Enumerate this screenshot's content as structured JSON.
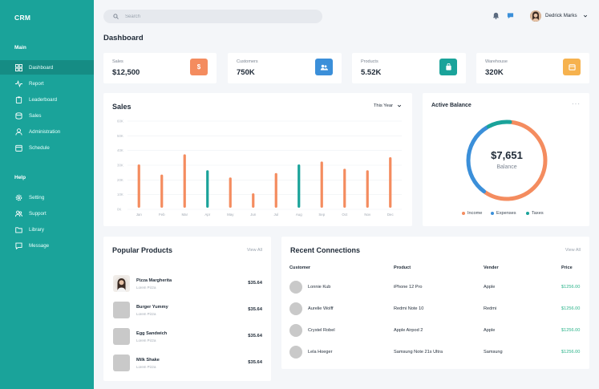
{
  "app": {
    "logo": "CRM"
  },
  "sidebar": {
    "main_title": "Main",
    "main_items": [
      {
        "label": "Dashboard",
        "icon": "dashboard-icon"
      },
      {
        "label": "Report",
        "icon": "pulse-icon"
      },
      {
        "label": "Leaderboard",
        "icon": "clipboard-icon"
      },
      {
        "label": "Sales",
        "icon": "stack-icon"
      },
      {
        "label": "Administration",
        "icon": "user-icon"
      },
      {
        "label": "Schedule",
        "icon": "calendar-icon"
      }
    ],
    "help_title": "Help",
    "help_items": [
      {
        "label": "Setting",
        "icon": "gear-icon"
      },
      {
        "label": "Support",
        "icon": "users-icon"
      },
      {
        "label": "Library",
        "icon": "folder-icon"
      },
      {
        "label": "Message",
        "icon": "chat-icon"
      }
    ]
  },
  "topbar": {
    "search_placeholder": "Search",
    "user_name": "Dedrick Marks"
  },
  "page": {
    "title": "Dashboard"
  },
  "stats": [
    {
      "label": "Sales",
      "value": "$12,500",
      "icon_text": "$",
      "color": "#f48c5f"
    },
    {
      "label": "Customers",
      "value": "750K",
      "icon_text": "",
      "color": "#3b8fd9"
    },
    {
      "label": "Products",
      "value": "5.52K",
      "icon_text": "",
      "color": "#1aa39a"
    },
    {
      "label": "Warehouse",
      "value": "320K",
      "icon_text": "",
      "color": "#f6b24e"
    }
  ],
  "sales": {
    "title": "Sales",
    "period": "This Year",
    "y_ticks": [
      "60K",
      "50K",
      "40K",
      "30K",
      "20K",
      "10K",
      "0K"
    ]
  },
  "chart_data": {
    "type": "bar",
    "title": "Sales",
    "categories": [
      "Jan",
      "Feb",
      "Mar",
      "Apr",
      "May",
      "Jun",
      "Jul",
      "Aug",
      "Sep",
      "Oct",
      "Nov",
      "Dec"
    ],
    "values": [
      30,
      23,
      37,
      26,
      21,
      10,
      24,
      30,
      32,
      27,
      26,
      35
    ],
    "colors": [
      "#f48c5f",
      "#f48c5f",
      "#f48c5f",
      "#1aa39a",
      "#f48c5f",
      "#f48c5f",
      "#f48c5f",
      "#1aa39a",
      "#f48c5f",
      "#f48c5f",
      "#f48c5f",
      "#f48c5f"
    ],
    "ylim": [
      0,
      60
    ],
    "grid": true
  },
  "balance": {
    "title": "Active Balance",
    "amount": "$7,651",
    "label": "Balance",
    "legend": [
      {
        "label": "Income",
        "color": "#f48c5f"
      },
      {
        "label": "Expenses",
        "color": "#3b8fd9"
      },
      {
        "label": "Taxes",
        "color": "#1aa39a"
      }
    ],
    "donut": [
      {
        "name": "Income",
        "fraction": 0.58,
        "color": "#f48c5f"
      },
      {
        "name": "Expenses",
        "fraction": 0.32,
        "color": "#3b8fd9"
      },
      {
        "name": "Taxes",
        "fraction": 0.1,
        "color": "#1aa39a"
      }
    ]
  },
  "popular": {
    "title": "Popular Products",
    "view_all": "View All",
    "items": [
      {
        "name": "Pizza Margherita",
        "sub": "Lorem Pizza",
        "price": "$35.64"
      },
      {
        "name": "Burger Yummy",
        "sub": "Lorem Pizza",
        "price": "$35.64"
      },
      {
        "name": "Egg Sandwich",
        "sub": "Lorem Pizza",
        "price": "$35.64"
      },
      {
        "name": "Milk Shake",
        "sub": "Lorem Pizza",
        "price": "$35.64"
      }
    ]
  },
  "connections": {
    "title": "Recent Connections",
    "view_all": "View All",
    "headers": [
      "Customer",
      "Product",
      "Vender",
      "Price"
    ],
    "rows": [
      {
        "customer": "Lonnie Kub",
        "product": "iPhone 12 Pro",
        "vender": "Apple",
        "price": "$1256.00"
      },
      {
        "customer": "Aurelie Wolff",
        "product": "Redmi Note 10",
        "vender": "Redmi",
        "price": "$1256.00"
      },
      {
        "customer": "Crystel Robel",
        "product": "Apple Airpod 2",
        "vender": "Apple",
        "price": "$1256.00"
      },
      {
        "customer": "Lela Hoeger",
        "product": "Samsung Note 21s Ultra",
        "vender": "Samsung",
        "price": "$1256.00"
      }
    ]
  }
}
